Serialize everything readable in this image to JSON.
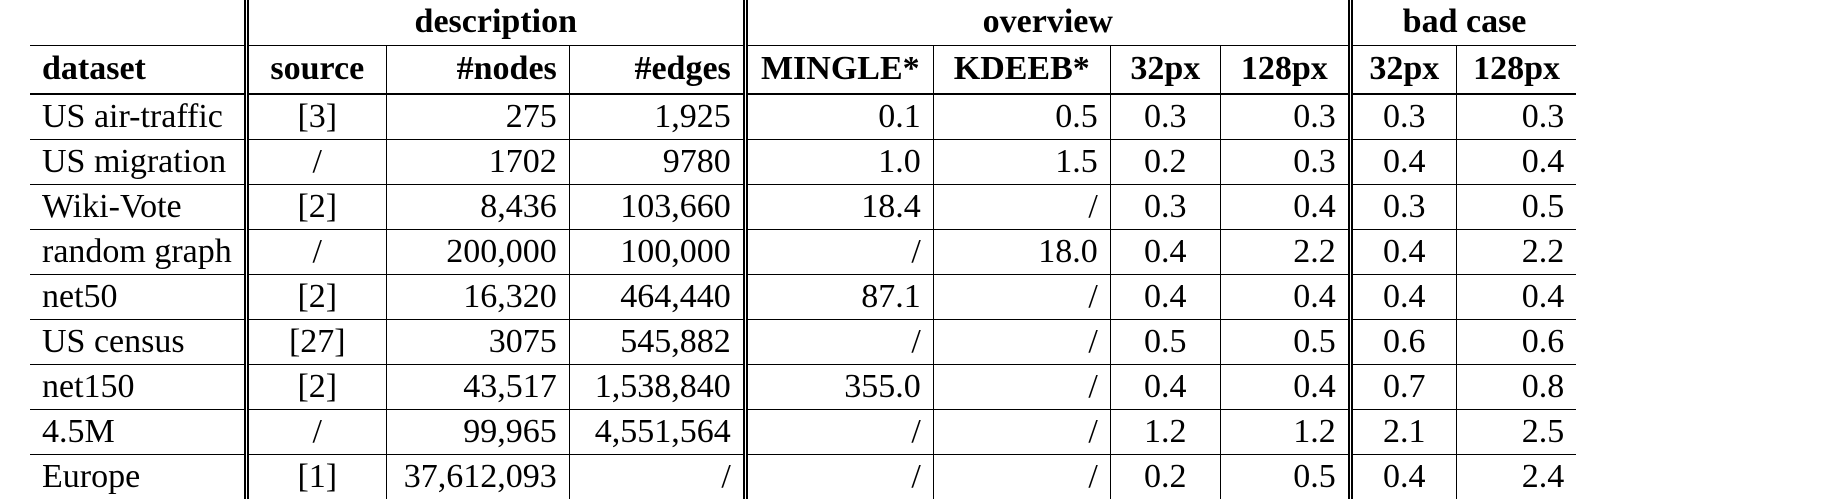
{
  "table": {
    "group_headers": {
      "description": "description",
      "overview": "overview",
      "bad_case": "bad case"
    },
    "columns": [
      "dataset",
      "source",
      "#nodes",
      "#edges",
      "MINGLE*",
      "KDEEB*",
      "32px",
      "128px",
      "32px",
      "128px"
    ],
    "rows": [
      [
        "US air-traffic",
        "[3]",
        "275",
        "1,925",
        "0.1",
        "0.5",
        "0.3",
        "0.3",
        "0.3",
        "0.3"
      ],
      [
        "US migration",
        "/",
        "1702",
        "9780",
        "1.0",
        "1.5",
        "0.2",
        "0.3",
        "0.4",
        "0.4"
      ],
      [
        "Wiki-Vote",
        "[2]",
        "8,436",
        "103,660",
        "18.4",
        "/",
        "0.3",
        "0.4",
        "0.3",
        "0.5"
      ],
      [
        "random graph",
        "/",
        "200,000",
        "100,000",
        "/",
        "18.0",
        "0.4",
        "2.2",
        "0.4",
        "2.2"
      ],
      [
        "net50",
        "[2]",
        "16,320",
        "464,440",
        "87.1",
        "/",
        "0.4",
        "0.4",
        "0.4",
        "0.4"
      ],
      [
        "US census",
        "[27]",
        "3075",
        "545,882",
        "/",
        "/",
        "0.5",
        "0.5",
        "0.6",
        "0.6"
      ],
      [
        "net150",
        "[2]",
        "43,517",
        "1,538,840",
        "355.0",
        "/",
        "0.4",
        "0.4",
        "0.7",
        "0.8"
      ],
      [
        "4.5M",
        "/",
        "99,965",
        "4,551,564",
        "/",
        "/",
        "1.2",
        "1.2",
        "2.1",
        "2.5"
      ],
      [
        "Europe",
        "[1]",
        "37,612,093",
        "/",
        "/",
        "/",
        "0.2",
        "0.5",
        "0.4",
        "2.4"
      ]
    ]
  }
}
